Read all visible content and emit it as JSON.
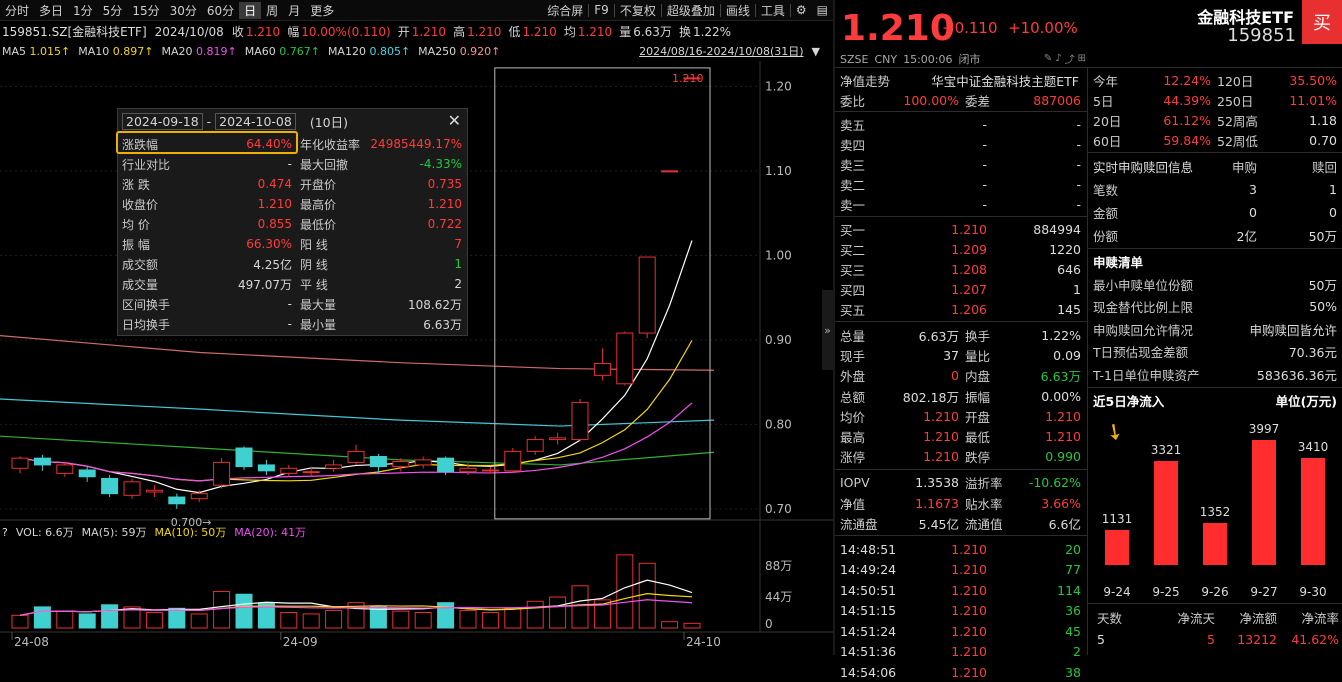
{
  "toolbar": {
    "periods": [
      "分时",
      "多日",
      "1分",
      "5分",
      "15分",
      "30分",
      "60分",
      "日",
      "周",
      "月",
      "更多"
    ],
    "active_period": "日",
    "right_items": [
      "综合屏",
      "F9",
      "不复权",
      "超级叠加",
      "画线",
      "工具"
    ]
  },
  "info_row": {
    "code_name": "159851.SZ[金融科技ETF]",
    "date": "2024/10/08",
    "close_label": "收",
    "close": "1.210",
    "change_label": "幅",
    "change": "10.00%(0.110)",
    "open_label": "开",
    "open": "1.210",
    "high_label": "高",
    "high": "1.210",
    "low_label": "低",
    "low": "1.210",
    "avg_label": "均",
    "avg": "1.210",
    "vol_label": "量",
    "vol": "6.63万",
    "turn_label": "换",
    "turn": "1.22%"
  },
  "ma_row": {
    "ma5": "MA5",
    "ma5_v": "1.015↑",
    "ma10": "MA10",
    "ma10_v": "0.897↑",
    "ma20": "MA20",
    "ma20_v": "0.819↑",
    "ma60": "MA60",
    "ma60_v": "0.767↑",
    "ma120": "MA120",
    "ma120_v": "0.805↑",
    "ma250": "MA250",
    "ma250_v": "0.920↑",
    "range": "2024/08/16-2024/10/08(31日)"
  },
  "vol_row": {
    "vol": "VOL: 6.6万",
    "ma5": "MA(5): 59万",
    "ma10": "MA(10): 50万",
    "ma20": "MA(20): 41万"
  },
  "chart_data": {
    "type": "candlestick",
    "price_axis": [
      "1.20",
      "1.10",
      "1.00",
      "0.90",
      "0.80",
      "0.70"
    ],
    "price_range": [
      0.688,
      1.23
    ],
    "vol_axis": [
      "88万",
      "44万",
      "0"
    ],
    "x_labels": [
      "24-08",
      "24-09",
      "24-10"
    ],
    "high_label": "1.210",
    "low_label": "0.700",
    "candles": [
      {
        "o": 0.748,
        "c": 0.76,
        "h": 0.762,
        "l": 0.742,
        "v": 18
      },
      {
        "o": 0.76,
        "c": 0.752,
        "h": 0.764,
        "l": 0.745,
        "v": 30
      },
      {
        "o": 0.742,
        "c": 0.752,
        "h": 0.756,
        "l": 0.738,
        "v": 24
      },
      {
        "o": 0.746,
        "c": 0.738,
        "h": 0.75,
        "l": 0.732,
        "v": 20
      },
      {
        "o": 0.736,
        "c": 0.718,
        "h": 0.74,
        "l": 0.714,
        "v": 33
      },
      {
        "o": 0.716,
        "c": 0.732,
        "h": 0.736,
        "l": 0.712,
        "v": 30
      },
      {
        "o": 0.72,
        "c": 0.722,
        "h": 0.728,
        "l": 0.714,
        "v": 22
      },
      {
        "o": 0.714,
        "c": 0.706,
        "h": 0.718,
        "l": 0.7,
        "v": 28
      },
      {
        "o": 0.712,
        "c": 0.718,
        "h": 0.722,
        "l": 0.708,
        "v": 20
      },
      {
        "o": 0.728,
        "c": 0.755,
        "h": 0.76,
        "l": 0.724,
        "v": 52
      },
      {
        "o": 0.772,
        "c": 0.75,
        "h": 0.774,
        "l": 0.746,
        "v": 48
      },
      {
        "o": 0.752,
        "c": 0.745,
        "h": 0.758,
        "l": 0.74,
        "v": 35
      },
      {
        "o": 0.742,
        "c": 0.748,
        "h": 0.752,
        "l": 0.738,
        "v": 22
      },
      {
        "o": 0.744,
        "c": 0.744,
        "h": 0.75,
        "l": 0.738,
        "v": 20
      },
      {
        "o": 0.748,
        "c": 0.752,
        "h": 0.758,
        "l": 0.744,
        "v": 25
      },
      {
        "o": 0.755,
        "c": 0.768,
        "h": 0.776,
        "l": 0.752,
        "v": 36
      },
      {
        "o": 0.762,
        "c": 0.75,
        "h": 0.765,
        "l": 0.742,
        "v": 30
      },
      {
        "o": 0.75,
        "c": 0.756,
        "h": 0.76,
        "l": 0.744,
        "v": 24
      },
      {
        "o": 0.752,
        "c": 0.758,
        "h": 0.762,
        "l": 0.748,
        "v": 22
      },
      {
        "o": 0.76,
        "c": 0.744,
        "h": 0.762,
        "l": 0.74,
        "v": 36
      },
      {
        "o": 0.744,
        "c": 0.748,
        "h": 0.754,
        "l": 0.74,
        "v": 25
      },
      {
        "o": 0.746,
        "c": 0.746,
        "h": 0.75,
        "l": 0.742,
        "v": 22
      },
      {
        "o": 0.745,
        "c": 0.768,
        "h": 0.772,
        "l": 0.743,
        "v": 28
      },
      {
        "o": 0.768,
        "c": 0.782,
        "h": 0.786,
        "l": 0.764,
        "v": 38
      },
      {
        "o": 0.782,
        "c": 0.784,
        "h": 0.79,
        "l": 0.776,
        "v": 44
      },
      {
        "o": 0.782,
        "c": 0.826,
        "h": 0.83,
        "l": 0.78,
        "v": 60
      },
      {
        "o": 0.858,
        "c": 0.872,
        "h": 0.89,
        "l": 0.852,
        "v": 40
      },
      {
        "o": 0.848,
        "c": 0.908,
        "h": 0.91,
        "l": 0.846,
        "v": 104
      },
      {
        "o": 0.908,
        "c": 0.998,
        "h": 0.998,
        "l": 0.902,
        "v": 92
      },
      {
        "o": 1.1,
        "c": 1.1,
        "h": 1.1,
        "l": 1.1,
        "v": 9
      },
      {
        "o": 1.21,
        "c": 1.21,
        "h": 1.21,
        "l": 1.21,
        "v": 6.63
      }
    ]
  },
  "popup": {
    "date_from": "2024-09-18",
    "date_to": "2024-10-08",
    "days": "(10日)",
    "rows": [
      [
        "涨跌幅",
        "64.40%",
        "年化收益率",
        "24985449.17%"
      ],
      [
        "行业对比",
        "-",
        "最大回撤",
        "-4.33%"
      ],
      [
        "涨  跌",
        "0.474",
        "开盘价",
        "0.735"
      ],
      [
        "收盘价",
        "1.210",
        "最高价",
        "1.210"
      ],
      [
        "均  价",
        "0.855",
        "最低价",
        "0.722"
      ],
      [
        "振  幅",
        "66.30%",
        "阳  线",
        "7"
      ],
      [
        "成交额",
        "4.25亿",
        "阴  线",
        "1"
      ],
      [
        "成交量",
        "497.07万",
        "平  线",
        "2"
      ],
      [
        "区间换手",
        "-",
        "最大量",
        "108.62万"
      ],
      [
        "日均换手",
        "-",
        "最小量",
        "6.63万"
      ]
    ]
  },
  "quote": {
    "price": "1.210",
    "chg": "+0.110",
    "pct": "+10.00%",
    "name": "金融科技ETF",
    "code": "159851",
    "buy_btn": "买",
    "market": "SZSE",
    "currency": "CNY",
    "time": "15:00:06",
    "status": "闭市",
    "index_name": "华宝中证金融科技主题ETF",
    "trend_label": "净值走势",
    "weibi_label": "委比",
    "weibi": "100.00%",
    "weicha_label": "委差",
    "weicha": "887006",
    "sells": [
      [
        "卖五",
        "-",
        "-"
      ],
      [
        "卖四",
        "-",
        "-"
      ],
      [
        "卖三",
        "-",
        "-"
      ],
      [
        "卖二",
        "-",
        "-"
      ],
      [
        "卖一",
        "-",
        "-"
      ]
    ],
    "buys": [
      [
        "买一",
        "1.210",
        "884994"
      ],
      [
        "买二",
        "1.209",
        "1220"
      ],
      [
        "买三",
        "1.208",
        "646"
      ],
      [
        "买四",
        "1.207",
        "1"
      ],
      [
        "买五",
        "1.206",
        "145"
      ]
    ],
    "stats": [
      [
        "总量",
        "6.63万",
        "换手",
        "1.22%"
      ],
      [
        "现手",
        "37",
        "量比",
        "0.09"
      ],
      [
        "外盘",
        "0",
        "内盘",
        "6.63万"
      ],
      [
        "总额",
        "802.18万",
        "振幅",
        "0.00%"
      ],
      [
        "均价",
        "1.210",
        "开盘",
        "1.210"
      ],
      [
        "最高",
        "1.210",
        "最低",
        "1.210"
      ],
      [
        "涨停",
        "1.210",
        "跌停",
        "0.990"
      ]
    ],
    "iopv": [
      [
        "IOPV",
        "1.3538",
        "溢折率",
        "-10.62%"
      ],
      [
        "净值",
        "1.1673",
        "贴水率",
        "3.66%"
      ],
      [
        "流通盘",
        "5.45亿",
        "流通值",
        "6.6亿"
      ]
    ],
    "ticks": [
      [
        "14:48:51",
        "1.210",
        "20"
      ],
      [
        "14:49:24",
        "1.210",
        "77"
      ],
      [
        "14:50:51",
        "1.210",
        "114"
      ],
      [
        "14:51:15",
        "1.210",
        "36"
      ],
      [
        "14:51:24",
        "1.210",
        "45"
      ],
      [
        "14:51:36",
        "1.210",
        "2"
      ],
      [
        "14:54:06",
        "1.210",
        "38"
      ]
    ]
  },
  "perf": {
    "rows": [
      [
        "今年",
        "12.24%",
        "120日",
        "35.50%"
      ],
      [
        "5日",
        "44.39%",
        "250日",
        "11.01%"
      ],
      [
        "20日",
        "61.12%",
        "52周高",
        "1.18"
      ],
      [
        "60日",
        "59.84%",
        "52周低",
        "0.70"
      ]
    ]
  },
  "subscribe": {
    "title": "实时申购赎回信息",
    "col1": "申购",
    "col2": "赎回",
    "rows": [
      [
        "笔数",
        "3",
        "1"
      ],
      [
        "金额",
        "0",
        "0"
      ],
      [
        "份额",
        "2亿",
        "50万"
      ]
    ]
  },
  "listing": {
    "title": "申赎清单",
    "rows": [
      [
        "最小申赎单位份额",
        "50万"
      ],
      [
        "现金替代比例上限",
        "50%"
      ],
      [
        "申购赎回允许情况",
        "申购赎回皆允许"
      ],
      [
        "T日预估现金差额",
        "70.36元"
      ],
      [
        "T-1日单位申赎资产",
        "583636.36元"
      ]
    ]
  },
  "inflow": {
    "title": "近5日净流入",
    "unit": "单位(万元)",
    "days": [
      "9-24",
      "9-25",
      "9-26",
      "9-27",
      "9-30"
    ],
    "values": [
      1131,
      3321,
      1352,
      3997,
      3410
    ],
    "summary_headers": [
      "天数",
      "净流天",
      "净流额",
      "净流率"
    ],
    "summary_values": [
      "5",
      "5",
      "13212",
      "41.62%"
    ]
  }
}
